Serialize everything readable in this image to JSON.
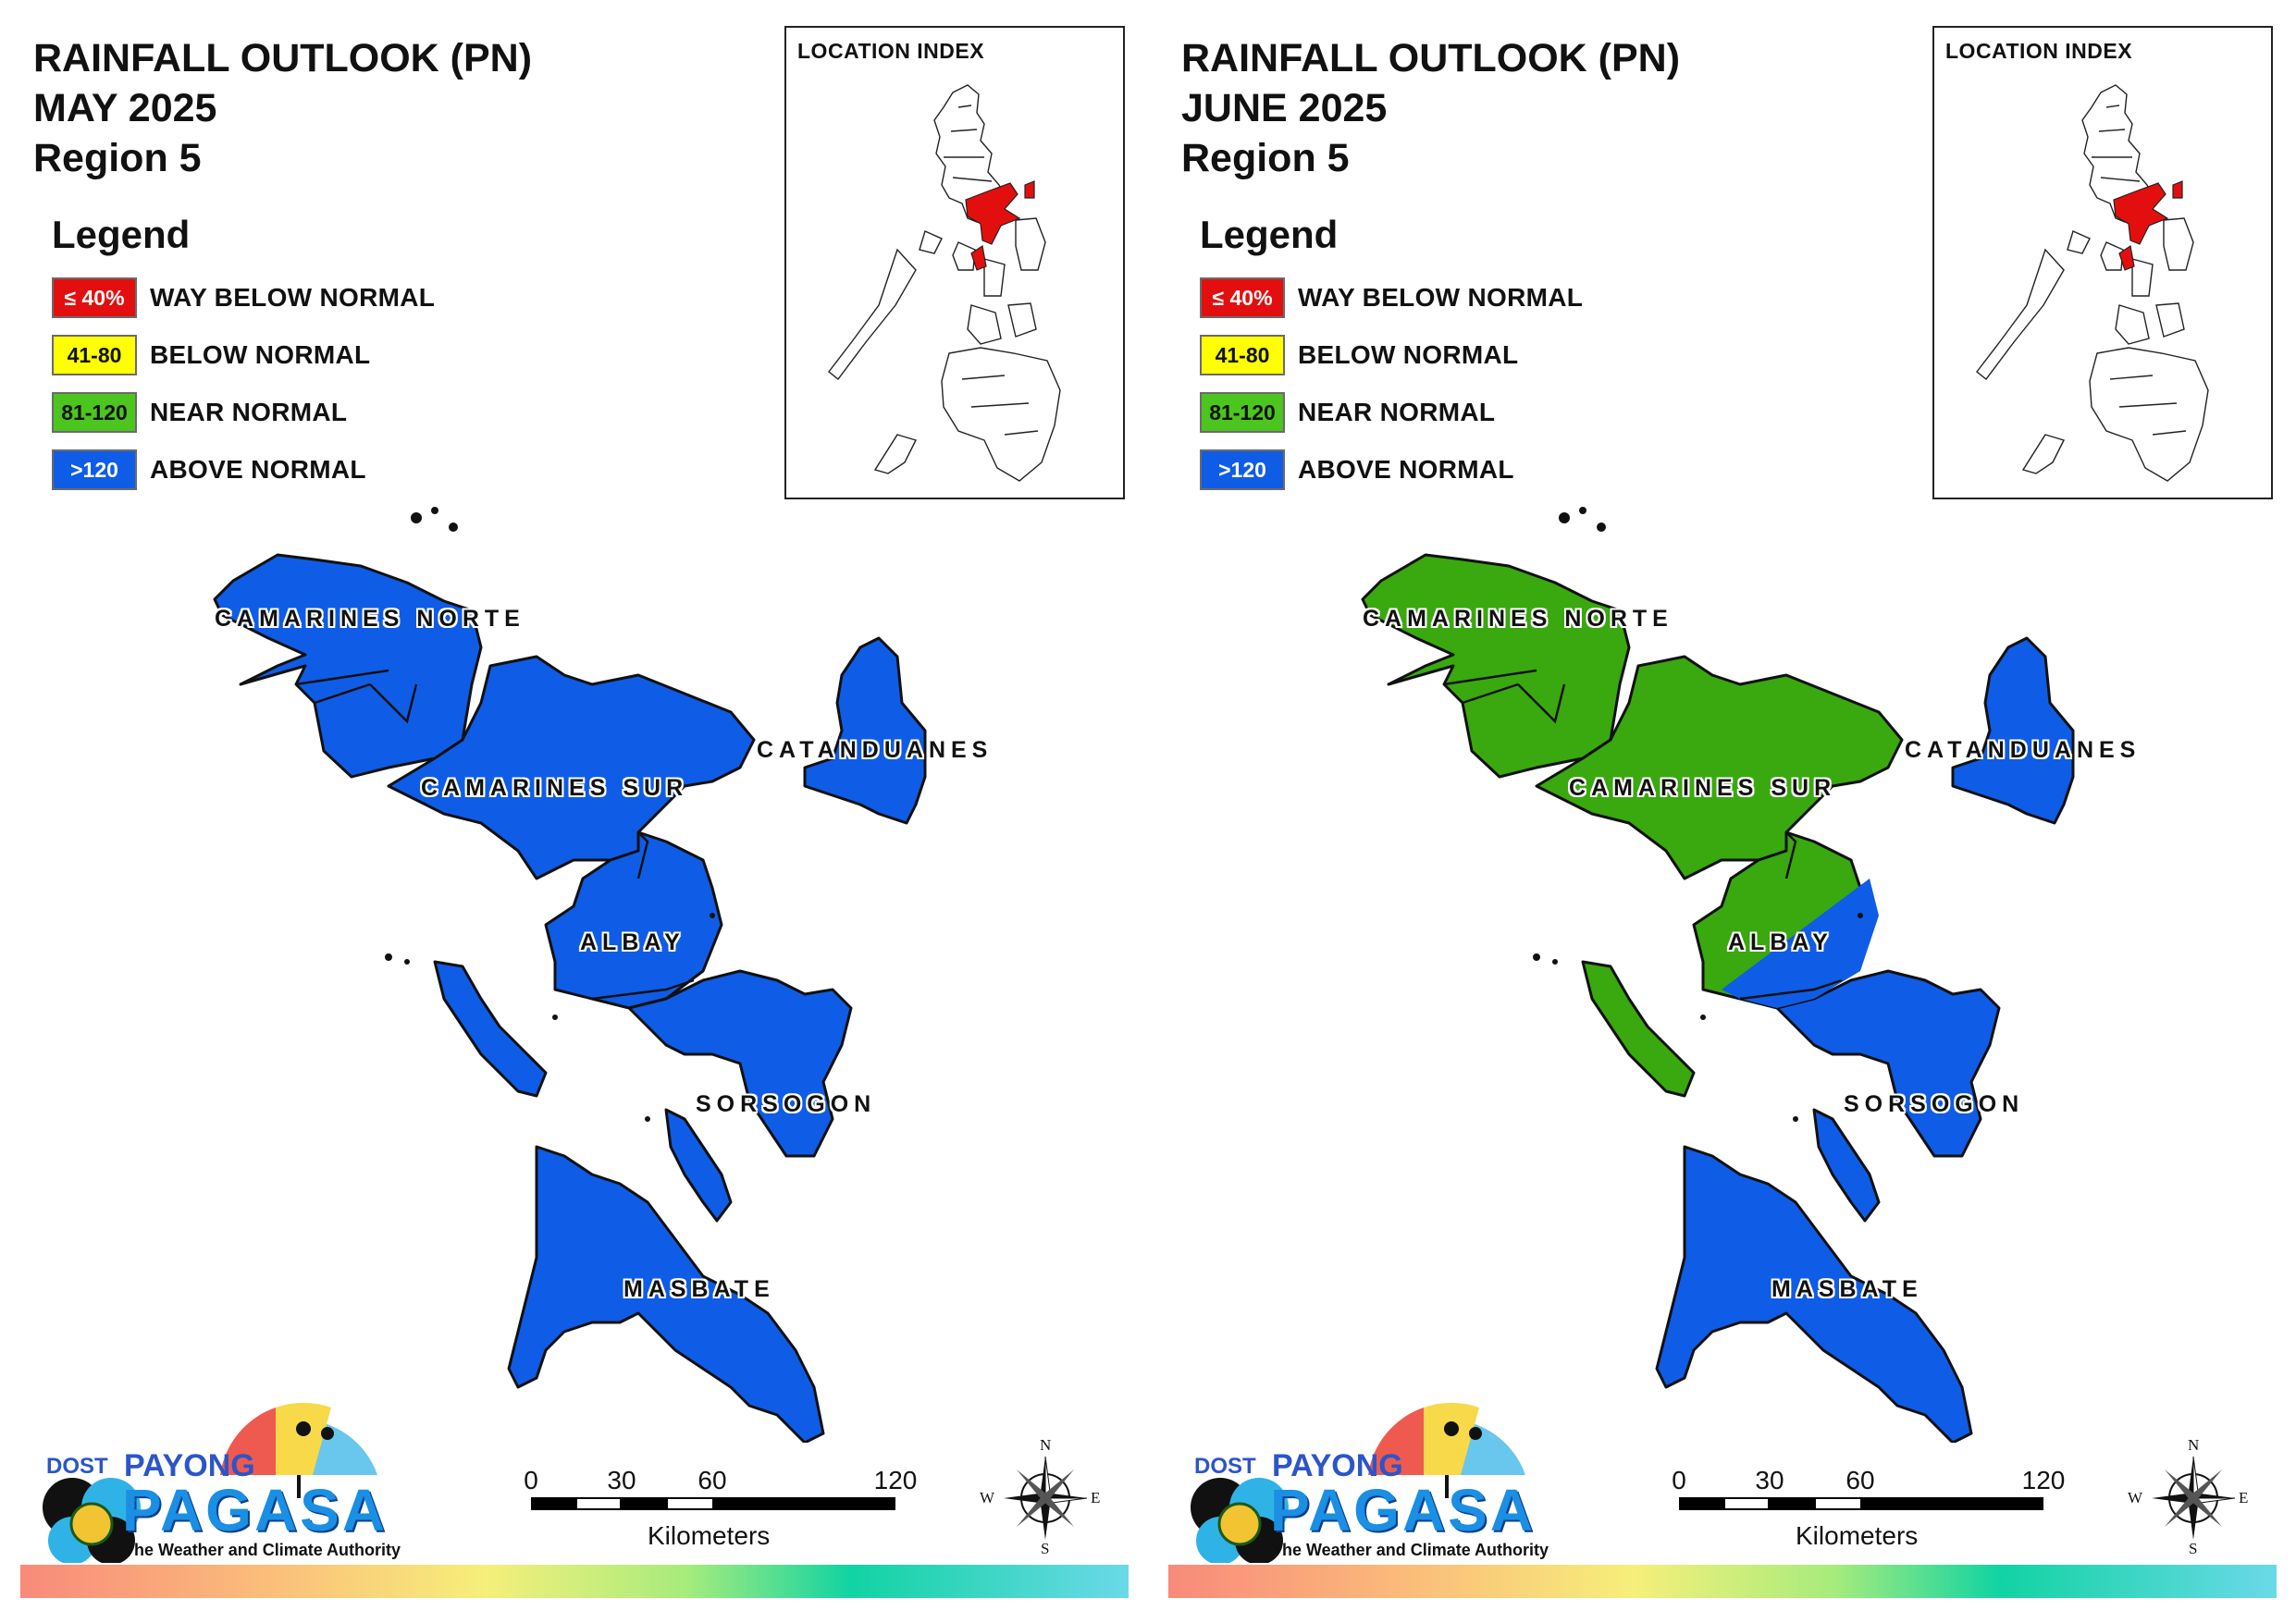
{
  "panels": [
    {
      "title": {
        "line1": "RAINFALL OUTLOOK (PN)",
        "line2": "MAY 2025",
        "line3": "Region 5"
      },
      "legend": {
        "heading": "Legend",
        "items": [
          {
            "swatch": "≤ 40%",
            "label": "WAY BELOW NORMAL",
            "color": "#e30f0f",
            "text_color": "#ffffff"
          },
          {
            "swatch": "41-80",
            "label": "BELOW NORMAL",
            "color": "#ffff00",
            "text_color": "#111111"
          },
          {
            "swatch": "81-120",
            "label": "NEAR NORMAL",
            "color": "#4cc51e",
            "text_color": "#111111"
          },
          {
            "swatch": ">120",
            "label": "ABOVE NORMAL",
            "color": "#0f5ce6",
            "text_color": "#ffffff"
          }
        ]
      },
      "location_index": {
        "label": "LOCATION INDEX",
        "highlight_color": "#e30f0f"
      },
      "map": {
        "provinces": [
          {
            "name": "CAMARINES NORTE",
            "category": "ABOVE NORMAL",
            "color": "#0f5ce6"
          },
          {
            "name": "CAMARINES SUR",
            "category": "ABOVE NORMAL",
            "color": "#0f5ce6"
          },
          {
            "name": "CATANDUANES",
            "category": "ABOVE NORMAL",
            "color": "#0f5ce6"
          },
          {
            "name": "ALBAY",
            "category": "ABOVE NORMAL",
            "color": "#0f5ce6"
          },
          {
            "name": "SORSOGON",
            "category": "ABOVE NORMAL",
            "color": "#0f5ce6"
          },
          {
            "name": "MASBATE",
            "category": "ABOVE NORMAL",
            "color": "#0f5ce6"
          }
        ]
      },
      "scale": {
        "ticks": [
          "0",
          "30",
          "60",
          "120"
        ],
        "unit": "Kilometers"
      },
      "compass": {
        "n": "N",
        "s": "S",
        "e": "E",
        "w": "W"
      },
      "logo": {
        "dost": "DOST",
        "payong": "PAYONG",
        "pagasa": "PAGASA",
        "tagline": "The Weather and Climate Authority"
      }
    },
    {
      "title": {
        "line1": "RAINFALL OUTLOOK (PN)",
        "line2": "JUNE 2025",
        "line3": "Region 5"
      },
      "legend": {
        "heading": "Legend",
        "items": [
          {
            "swatch": "≤ 40%",
            "label": "WAY BELOW NORMAL",
            "color": "#e30f0f",
            "text_color": "#ffffff"
          },
          {
            "swatch": "41-80",
            "label": "BELOW NORMAL",
            "color": "#ffff00",
            "text_color": "#111111"
          },
          {
            "swatch": "81-120",
            "label": "NEAR NORMAL",
            "color": "#4cc51e",
            "text_color": "#111111"
          },
          {
            "swatch": ">120",
            "label": "ABOVE NORMAL",
            "color": "#0f5ce6",
            "text_color": "#ffffff"
          }
        ]
      },
      "location_index": {
        "label": "LOCATION INDEX",
        "highlight_color": "#e30f0f"
      },
      "map": {
        "provinces": [
          {
            "name": "CAMARINES NORTE",
            "category": "NEAR NORMAL",
            "color": "#3aa80f"
          },
          {
            "name": "CAMARINES SUR",
            "category": "NEAR NORMAL",
            "color": "#3aa80f"
          },
          {
            "name": "CATANDUANES",
            "category": "ABOVE NORMAL",
            "color": "#0f5ce6"
          },
          {
            "name": "ALBAY",
            "category": "NEAR NORMAL / ABOVE NORMAL",
            "color": "#3aa80f"
          },
          {
            "name": "SORSOGON",
            "category": "ABOVE NORMAL",
            "color": "#0f5ce6"
          },
          {
            "name": "MASBATE",
            "category": "ABOVE NORMAL",
            "color": "#0f5ce6"
          }
        ]
      },
      "scale": {
        "ticks": [
          "0",
          "30",
          "60",
          "120"
        ],
        "unit": "Kilometers"
      },
      "compass": {
        "n": "N",
        "s": "S",
        "e": "E",
        "w": "W"
      },
      "logo": {
        "dost": "DOST",
        "payong": "PAYONG",
        "pagasa": "PAGASA",
        "tagline": "The Weather and Climate Authority"
      }
    }
  ]
}
